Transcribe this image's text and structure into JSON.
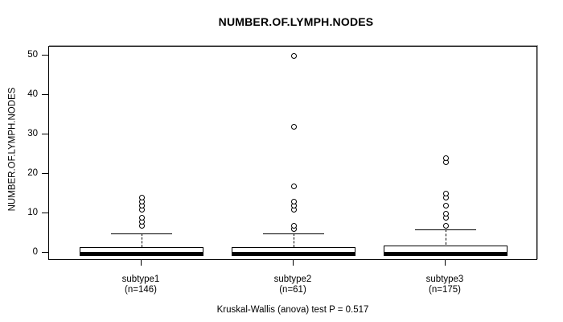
{
  "title": "NUMBER.OF.LYMPH.NODES",
  "y_axis": {
    "label": "NUMBER.OF.LYMPH.NODES",
    "ticks": [
      0,
      10,
      20,
      30,
      40,
      50
    ]
  },
  "footer": {
    "text": "Kruskal-Wallis (anova) test P = 0.517"
  },
  "chart_data": {
    "type": "boxplot",
    "title": "NUMBER.OF.LYMPH.NODES",
    "ylabel": "NUMBER.OF.LYMPH.NODES",
    "xlabel": "",
    "ylim": [
      0,
      50
    ],
    "yticks": [
      0,
      10,
      20,
      30,
      40,
      50
    ],
    "grid": false,
    "groups": [
      {
        "label": "subtype1",
        "n_label": "(n=146)",
        "n": 146,
        "whisker_low": 0,
        "q1": 0,
        "median": 0,
        "q3": 1.5,
        "whisker_high": 5,
        "outliers": [
          7,
          8,
          9,
          11,
          12,
          13,
          14
        ]
      },
      {
        "label": "subtype2",
        "n_label": "(n=61)",
        "n": 61,
        "whisker_low": 0,
        "q1": 0,
        "median": 0,
        "q3": 1.5,
        "whisker_high": 5,
        "outliers": [
          6,
          7,
          11,
          12,
          13,
          17,
          32,
          50
        ]
      },
      {
        "label": "subtype3",
        "n_label": "(n=175)",
        "n": 175,
        "whisker_low": 0,
        "q1": 0,
        "median": 0,
        "q3": 2,
        "whisker_high": 6,
        "outliers": [
          7,
          9,
          10,
          12,
          14,
          15,
          23,
          24
        ]
      }
    ],
    "annotation": "Kruskal-Wallis (anova) test P = 0.517",
    "p_value": 0.517
  },
  "colors": {
    "line": "#000000",
    "box_fill": "#ffffff",
    "background": "#ffffff"
  }
}
